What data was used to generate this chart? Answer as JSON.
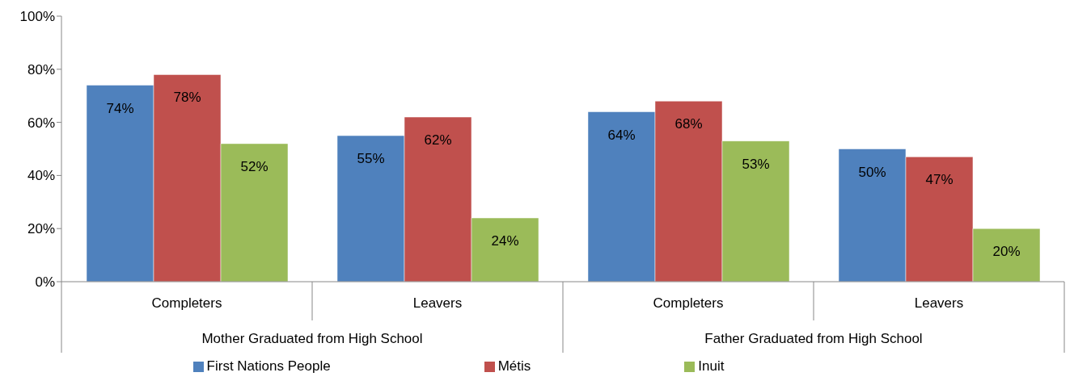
{
  "chart_data": {
    "type": "bar",
    "categories": [
      "Completers",
      "Leavers",
      "Completers",
      "Leavers"
    ],
    "series": [
      {
        "name": "First Nations People",
        "color": "#4f81bd",
        "values": [
          74,
          55,
          64,
          50
        ],
        "value_labels": [
          "74%",
          "55%",
          "64%",
          "50%"
        ]
      },
      {
        "name": "Métis",
        "color": "#c0504d",
        "values": [
          78,
          62,
          68,
          47
        ],
        "value_labels": [
          "78%",
          "62%",
          "68%",
          "47%"
        ]
      },
      {
        "name": "Inuit",
        "color": "#9bbb59",
        "values": [
          52,
          24,
          53,
          20
        ],
        "value_labels": [
          "52%",
          "24%",
          "53%",
          "20%"
        ]
      }
    ],
    "ylim": [
      0,
      100
    ],
    "yticks": [
      {
        "value": 0,
        "label": "0%"
      },
      {
        "value": 20,
        "label": "20%"
      },
      {
        "value": 40,
        "label": "40%"
      },
      {
        "value": 60,
        "label": "60%"
      },
      {
        "value": 80,
        "label": "80%"
      },
      {
        "value": 100,
        "label": "100%"
      }
    ],
    "annotations": [
      "Mother Graduated from High School",
      "Father Graduated from High School"
    ],
    "grid": false,
    "legend": "bottom"
  }
}
